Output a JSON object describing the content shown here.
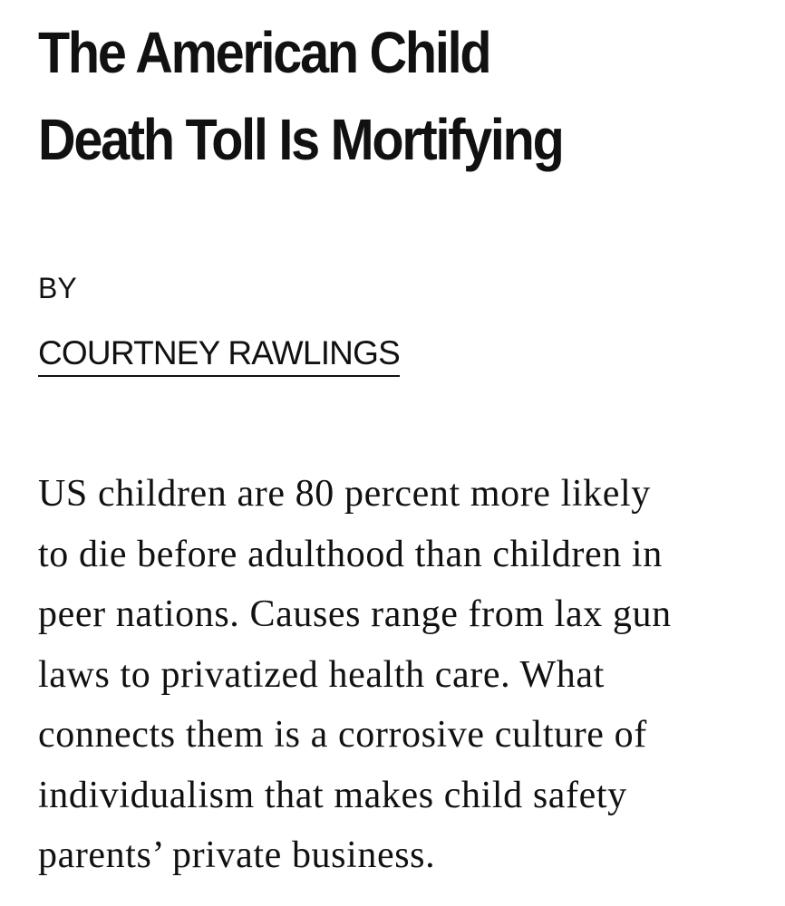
{
  "article": {
    "headline_lines": [
      "The American Child",
      "Death Toll Is Mortifying"
    ],
    "byline": {
      "by_label": "BY",
      "author": "COURTNEY RAWLINGS"
    },
    "dek_lines": [
      "US children are 80 percent more likely",
      "to die before adulthood than children in",
      "peer nations. Causes range from lax gun",
      "laws to privatized health care. What",
      "connects them is a corrosive culture of",
      "individualism that makes child safety",
      "parents’ private business."
    ]
  }
}
